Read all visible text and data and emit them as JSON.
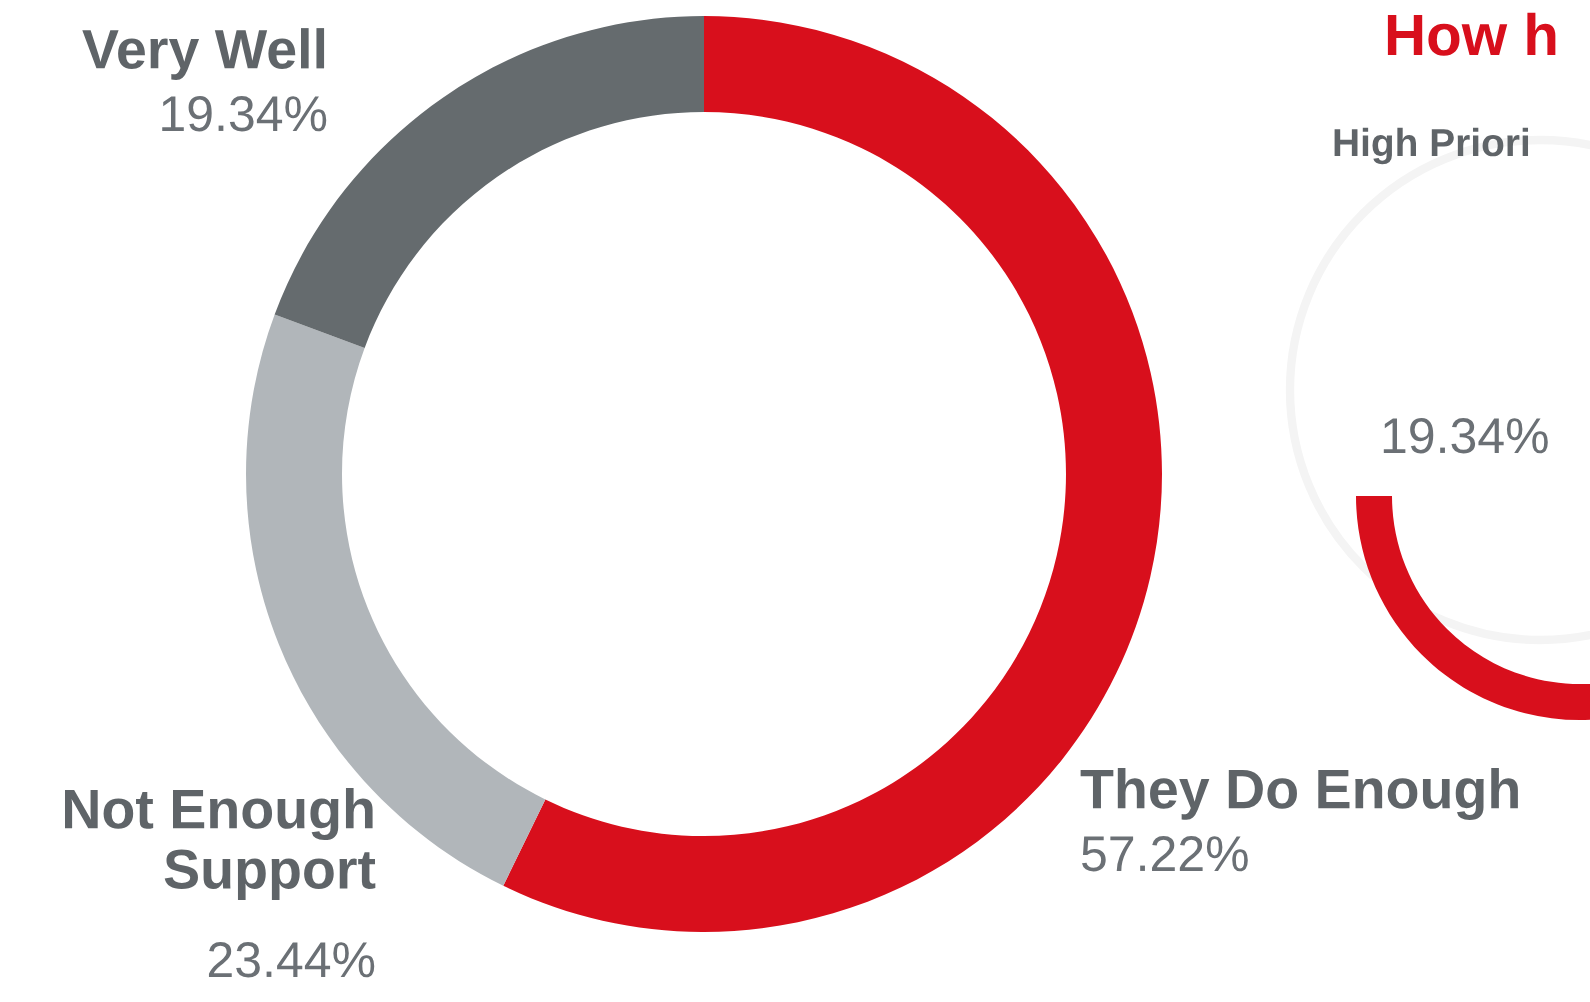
{
  "chart_data": [
    {
      "type": "donut",
      "categories": [
        "They Do Enough",
        "Not Enough Support",
        "Very Well"
      ],
      "values": [
        57.22,
        23.44,
        19.34
      ],
      "colors": [
        "#d80f1c",
        "#b1b6ba",
        "#656b6e"
      ],
      "value_labels": [
        "57.22%",
        "23.44%",
        "19.34%"
      ],
      "legend": false
    },
    {
      "type": "other",
      "title": "How h",
      "annotations": [
        "High Priori",
        "19.34%"
      ]
    }
  ]
}
